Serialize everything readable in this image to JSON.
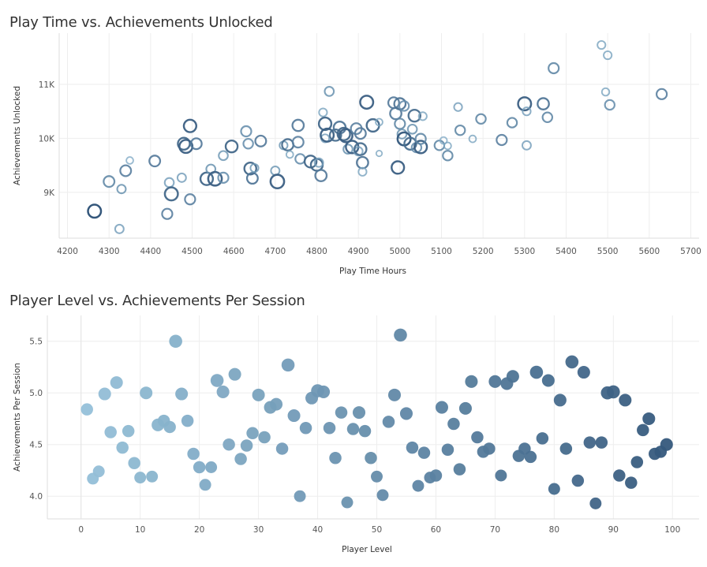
{
  "charts": [
    {
      "title": "Play Time vs. Achievements Unlocked"
    },
    {
      "title": "Player Level vs. Achievements Per Session"
    }
  ],
  "colors": {
    "light": "#9ecae1",
    "mid": "#6a9bc3",
    "dark": "#2c4f74",
    "grid": "#eeeeee"
  },
  "chart_data": [
    {
      "type": "scatter",
      "title": "Play Time vs. Achievements Unlocked",
      "xlabel": "Play Time Hours",
      "ylabel": "Achievements Unlocked",
      "xlim": [
        4180,
        5720
      ],
      "ylim": [
        8150,
        11950
      ],
      "xticks": [
        4200,
        4300,
        4400,
        4500,
        4600,
        4700,
        4800,
        4900,
        5000,
        5100,
        5200,
        5300,
        5400,
        5500,
        5600,
        5700
      ],
      "yticks": [
        {
          "v": 9000,
          "label": "9K"
        },
        {
          "v": 10000,
          "label": "10K"
        },
        {
          "v": 11000,
          "label": "11K"
        }
      ],
      "style": "hollow",
      "points": [
        {
          "x": 4265,
          "y": 8650,
          "s": 0.75,
          "c": 0.95
        },
        {
          "x": 4325,
          "y": 8320,
          "s": 0.35,
          "c": 0.35
        },
        {
          "x": 4300,
          "y": 9200,
          "s": 0.55,
          "c": 0.55
        },
        {
          "x": 4330,
          "y": 9060,
          "s": 0.35,
          "c": 0.45
        },
        {
          "x": 4340,
          "y": 9400,
          "s": 0.55,
          "c": 0.6
        },
        {
          "x": 4350,
          "y": 9590,
          "s": 0.2,
          "c": 0.25
        },
        {
          "x": 4410,
          "y": 9580,
          "s": 0.55,
          "c": 0.65
        },
        {
          "x": 4440,
          "y": 8600,
          "s": 0.5,
          "c": 0.6
        },
        {
          "x": 4445,
          "y": 9180,
          "s": 0.4,
          "c": 0.35
        },
        {
          "x": 4450,
          "y": 8970,
          "s": 0.75,
          "c": 0.8
        },
        {
          "x": 4475,
          "y": 9270,
          "s": 0.35,
          "c": 0.35
        },
        {
          "x": 4480,
          "y": 9900,
          "s": 0.65,
          "c": 0.8
        },
        {
          "x": 4485,
          "y": 9850,
          "s": 0.75,
          "c": 0.85
        },
        {
          "x": 4495,
          "y": 10230,
          "s": 0.7,
          "c": 0.85
        },
        {
          "x": 4495,
          "y": 8870,
          "s": 0.5,
          "c": 0.6
        },
        {
          "x": 4510,
          "y": 9900,
          "s": 0.55,
          "c": 0.65
        },
        {
          "x": 4535,
          "y": 9250,
          "s": 0.7,
          "c": 0.8
        },
        {
          "x": 4545,
          "y": 9430,
          "s": 0.4,
          "c": 0.45
        },
        {
          "x": 4555,
          "y": 9250,
          "s": 0.8,
          "c": 0.85
        },
        {
          "x": 4575,
          "y": 9270,
          "s": 0.5,
          "c": 0.5
        },
        {
          "x": 4575,
          "y": 9680,
          "s": 0.4,
          "c": 0.4
        },
        {
          "x": 4595,
          "y": 9850,
          "s": 0.65,
          "c": 0.8
        },
        {
          "x": 4630,
          "y": 10130,
          "s": 0.5,
          "c": 0.5
        },
        {
          "x": 4635,
          "y": 9900,
          "s": 0.45,
          "c": 0.5
        },
        {
          "x": 4640,
          "y": 9440,
          "s": 0.65,
          "c": 0.8
        },
        {
          "x": 4645,
          "y": 9260,
          "s": 0.55,
          "c": 0.7
        },
        {
          "x": 4650,
          "y": 9450,
          "s": 0.3,
          "c": 0.4
        },
        {
          "x": 4665,
          "y": 9950,
          "s": 0.55,
          "c": 0.65
        },
        {
          "x": 4700,
          "y": 9400,
          "s": 0.35,
          "c": 0.4
        },
        {
          "x": 4705,
          "y": 9200,
          "s": 0.8,
          "c": 0.85
        },
        {
          "x": 4720,
          "y": 9870,
          "s": 0.3,
          "c": 0.4
        },
        {
          "x": 4730,
          "y": 9880,
          "s": 0.6,
          "c": 0.75
        },
        {
          "x": 4735,
          "y": 9700,
          "s": 0.2,
          "c": 0.3
        },
        {
          "x": 4755,
          "y": 9930,
          "s": 0.55,
          "c": 0.6
        },
        {
          "x": 4755,
          "y": 10240,
          "s": 0.6,
          "c": 0.65
        },
        {
          "x": 4760,
          "y": 9620,
          "s": 0.45,
          "c": 0.5
        },
        {
          "x": 4785,
          "y": 9570,
          "s": 0.65,
          "c": 0.8
        },
        {
          "x": 4800,
          "y": 9510,
          "s": 0.65,
          "c": 0.8
        },
        {
          "x": 4805,
          "y": 9550,
          "s": 0.35,
          "c": 0.35
        },
        {
          "x": 4810,
          "y": 9310,
          "s": 0.6,
          "c": 0.65
        },
        {
          "x": 4815,
          "y": 10480,
          "s": 0.3,
          "c": 0.3
        },
        {
          "x": 4820,
          "y": 10270,
          "s": 0.7,
          "c": 0.8
        },
        {
          "x": 4820,
          "y": 10000,
          "s": 0.3,
          "c": 0.35
        },
        {
          "x": 4825,
          "y": 10060,
          "s": 0.75,
          "c": 0.85
        },
        {
          "x": 4830,
          "y": 10870,
          "s": 0.4,
          "c": 0.45
        },
        {
          "x": 4845,
          "y": 10060,
          "s": 0.6,
          "c": 0.75
        },
        {
          "x": 4855,
          "y": 10200,
          "s": 0.65,
          "c": 0.7
        },
        {
          "x": 4865,
          "y": 10080,
          "s": 0.7,
          "c": 0.8
        },
        {
          "x": 4870,
          "y": 10050,
          "s": 0.75,
          "c": 0.85
        },
        {
          "x": 4875,
          "y": 9800,
          "s": 0.4,
          "c": 0.45
        },
        {
          "x": 4885,
          "y": 9840,
          "s": 0.7,
          "c": 0.85
        },
        {
          "x": 4895,
          "y": 10180,
          "s": 0.55,
          "c": 0.6
        },
        {
          "x": 4900,
          "y": 9760,
          "s": 0.35,
          "c": 0.35
        },
        {
          "x": 4905,
          "y": 9800,
          "s": 0.65,
          "c": 0.75
        },
        {
          "x": 4905,
          "y": 10090,
          "s": 0.55,
          "c": 0.65
        },
        {
          "x": 4910,
          "y": 9550,
          "s": 0.6,
          "c": 0.7
        },
        {
          "x": 4910,
          "y": 9380,
          "s": 0.3,
          "c": 0.3
        },
        {
          "x": 4920,
          "y": 10670,
          "s": 0.75,
          "c": 0.85
        },
        {
          "x": 4935,
          "y": 10240,
          "s": 0.7,
          "c": 0.8
        },
        {
          "x": 4950,
          "y": 9720,
          "s": 0.1,
          "c": 0.3
        },
        {
          "x": 4950,
          "y": 10300,
          "s": 0.2,
          "c": 0.3
        },
        {
          "x": 4985,
          "y": 10660,
          "s": 0.55,
          "c": 0.65
        },
        {
          "x": 4990,
          "y": 10460,
          "s": 0.6,
          "c": 0.65
        },
        {
          "x": 4995,
          "y": 9460,
          "s": 0.7,
          "c": 0.85
        },
        {
          "x": 5000,
          "y": 10640,
          "s": 0.6,
          "c": 0.7
        },
        {
          "x": 5000,
          "y": 10270,
          "s": 0.5,
          "c": 0.55
        },
        {
          "x": 5005,
          "y": 10080,
          "s": 0.4,
          "c": 0.45
        },
        {
          "x": 5010,
          "y": 10600,
          "s": 0.45,
          "c": 0.5
        },
        {
          "x": 5010,
          "y": 9990,
          "s": 0.75,
          "c": 0.9
        },
        {
          "x": 5025,
          "y": 9900,
          "s": 0.65,
          "c": 0.75
        },
        {
          "x": 5030,
          "y": 10170,
          "s": 0.4,
          "c": 0.45
        },
        {
          "x": 5035,
          "y": 10420,
          "s": 0.65,
          "c": 0.75
        },
        {
          "x": 5040,
          "y": 9830,
          "s": 0.45,
          "c": 0.5
        },
        {
          "x": 5050,
          "y": 9840,
          "s": 0.7,
          "c": 0.85
        },
        {
          "x": 5050,
          "y": 9990,
          "s": 0.5,
          "c": 0.55
        },
        {
          "x": 5055,
          "y": 10410,
          "s": 0.3,
          "c": 0.3
        },
        {
          "x": 5095,
          "y": 9870,
          "s": 0.45,
          "c": 0.55
        },
        {
          "x": 5105,
          "y": 9960,
          "s": 0.2,
          "c": 0.25
        },
        {
          "x": 5115,
          "y": 9680,
          "s": 0.45,
          "c": 0.55
        },
        {
          "x": 5115,
          "y": 9860,
          "s": 0.2,
          "c": 0.3
        },
        {
          "x": 5140,
          "y": 10580,
          "s": 0.3,
          "c": 0.35
        },
        {
          "x": 5145,
          "y": 10150,
          "s": 0.45,
          "c": 0.55
        },
        {
          "x": 5175,
          "y": 9990,
          "s": 0.2,
          "c": 0.3
        },
        {
          "x": 5195,
          "y": 10360,
          "s": 0.45,
          "c": 0.55
        },
        {
          "x": 5245,
          "y": 9970,
          "s": 0.5,
          "c": 0.6
        },
        {
          "x": 5270,
          "y": 10290,
          "s": 0.45,
          "c": 0.55
        },
        {
          "x": 5300,
          "y": 10640,
          "s": 0.75,
          "c": 0.85
        },
        {
          "x": 5305,
          "y": 9870,
          "s": 0.35,
          "c": 0.35
        },
        {
          "x": 5305,
          "y": 10500,
          "s": 0.3,
          "c": 0.35
        },
        {
          "x": 5345,
          "y": 10640,
          "s": 0.6,
          "c": 0.7
        },
        {
          "x": 5355,
          "y": 10390,
          "s": 0.45,
          "c": 0.55
        },
        {
          "x": 5370,
          "y": 11300,
          "s": 0.5,
          "c": 0.55
        },
        {
          "x": 5485,
          "y": 11730,
          "s": 0.3,
          "c": 0.3
        },
        {
          "x": 5495,
          "y": 10860,
          "s": 0.25,
          "c": 0.3
        },
        {
          "x": 5500,
          "y": 11540,
          "s": 0.3,
          "c": 0.3
        },
        {
          "x": 5505,
          "y": 10620,
          "s": 0.45,
          "c": 0.5
        },
        {
          "x": 5630,
          "y": 10820,
          "s": 0.5,
          "c": 0.6
        }
      ]
    },
    {
      "type": "scatter",
      "title": "Player Level vs. Achievements Per Session",
      "xlabel": "Player Level",
      "ylabel": "Achievements Per Session",
      "xlim": [
        -5.7,
        104.5
      ],
      "ylim": [
        3.78,
        5.75
      ],
      "xticks": [
        0,
        10,
        20,
        30,
        40,
        50,
        60,
        70,
        80,
        90,
        100
      ],
      "yticks": [
        {
          "v": 4.0,
          "label": "4.0"
        },
        {
          "v": 4.5,
          "label": "4.5"
        },
        {
          "v": 5.0,
          "label": "5.0"
        },
        {
          "v": 5.5,
          "label": "5.5"
        }
      ],
      "style": "filled",
      "points": [
        {
          "x": 1,
          "y": 4.84,
          "s": 0.5
        },
        {
          "x": 2,
          "y": 4.17,
          "s": 0.45
        },
        {
          "x": 3,
          "y": 4.24,
          "s": 0.45
        },
        {
          "x": 4,
          "y": 4.99,
          "s": 0.55
        },
        {
          "x": 5,
          "y": 4.62,
          "s": 0.5
        },
        {
          "x": 6,
          "y": 5.1,
          "s": 0.55
        },
        {
          "x": 7,
          "y": 4.47,
          "s": 0.5
        },
        {
          "x": 8,
          "y": 4.63,
          "s": 0.5
        },
        {
          "x": 9,
          "y": 4.32,
          "s": 0.5
        },
        {
          "x": 10,
          "y": 4.18,
          "s": 0.45
        },
        {
          "x": 11,
          "y": 5.0,
          "s": 0.55
        },
        {
          "x": 12,
          "y": 4.19,
          "s": 0.45
        },
        {
          "x": 13,
          "y": 4.69,
          "s": 0.55
        },
        {
          "x": 14,
          "y": 4.73,
          "s": 0.5
        },
        {
          "x": 15,
          "y": 4.67,
          "s": 0.5
        },
        {
          "x": 16,
          "y": 5.5,
          "s": 0.6
        },
        {
          "x": 17,
          "y": 4.99,
          "s": 0.55
        },
        {
          "x": 18,
          "y": 4.73,
          "s": 0.5
        },
        {
          "x": 19,
          "y": 4.41,
          "s": 0.5
        },
        {
          "x": 20,
          "y": 4.28,
          "s": 0.5
        },
        {
          "x": 21,
          "y": 4.11,
          "s": 0.45
        },
        {
          "x": 22,
          "y": 4.28,
          "s": 0.45
        },
        {
          "x": 23,
          "y": 5.12,
          "s": 0.6
        },
        {
          "x": 24,
          "y": 5.01,
          "s": 0.55
        },
        {
          "x": 25,
          "y": 4.5,
          "s": 0.5
        },
        {
          "x": 26,
          "y": 5.18,
          "s": 0.55
        },
        {
          "x": 27,
          "y": 4.36,
          "s": 0.5
        },
        {
          "x": 28,
          "y": 4.49,
          "s": 0.5
        },
        {
          "x": 29,
          "y": 4.61,
          "s": 0.5
        },
        {
          "x": 30,
          "y": 4.98,
          "s": 0.55
        },
        {
          "x": 31,
          "y": 4.57,
          "s": 0.5
        },
        {
          "x": 32,
          "y": 4.86,
          "s": 0.55
        },
        {
          "x": 33,
          "y": 4.89,
          "s": 0.55
        },
        {
          "x": 34,
          "y": 4.46,
          "s": 0.5
        },
        {
          "x": 35,
          "y": 5.27,
          "s": 0.6
        },
        {
          "x": 36,
          "y": 4.78,
          "s": 0.55
        },
        {
          "x": 37,
          "y": 4.0,
          "s": 0.45
        },
        {
          "x": 38,
          "y": 4.66,
          "s": 0.5
        },
        {
          "x": 39,
          "y": 4.95,
          "s": 0.55
        },
        {
          "x": 40,
          "y": 5.02,
          "s": 0.6
        },
        {
          "x": 41,
          "y": 5.01,
          "s": 0.55
        },
        {
          "x": 42,
          "y": 4.66,
          "s": 0.5
        },
        {
          "x": 43,
          "y": 4.37,
          "s": 0.5
        },
        {
          "x": 44,
          "y": 4.81,
          "s": 0.5
        },
        {
          "x": 45,
          "y": 3.94,
          "s": 0.45
        },
        {
          "x": 46,
          "y": 4.65,
          "s": 0.5
        },
        {
          "x": 47,
          "y": 4.81,
          "s": 0.55
        },
        {
          "x": 48,
          "y": 4.63,
          "s": 0.5
        },
        {
          "x": 49,
          "y": 4.37,
          "s": 0.5
        },
        {
          "x": 50,
          "y": 4.19,
          "s": 0.45
        },
        {
          "x": 51,
          "y": 4.01,
          "s": 0.45
        },
        {
          "x": 52,
          "y": 4.72,
          "s": 0.5
        },
        {
          "x": 53,
          "y": 4.98,
          "s": 0.55
        },
        {
          "x": 54,
          "y": 5.56,
          "s": 0.6
        },
        {
          "x": 55,
          "y": 4.8,
          "s": 0.55
        },
        {
          "x": 56,
          "y": 4.47,
          "s": 0.5
        },
        {
          "x": 57,
          "y": 4.1,
          "s": 0.45
        },
        {
          "x": 58,
          "y": 4.42,
          "s": 0.5
        },
        {
          "x": 59,
          "y": 4.18,
          "s": 0.45
        },
        {
          "x": 60,
          "y": 4.2,
          "s": 0.5
        },
        {
          "x": 61,
          "y": 4.86,
          "s": 0.55
        },
        {
          "x": 62,
          "y": 4.45,
          "s": 0.5
        },
        {
          "x": 63,
          "y": 4.7,
          "s": 0.5
        },
        {
          "x": 64,
          "y": 4.26,
          "s": 0.5
        },
        {
          "x": 65,
          "y": 4.85,
          "s": 0.55
        },
        {
          "x": 66,
          "y": 5.11,
          "s": 0.55
        },
        {
          "x": 67,
          "y": 4.57,
          "s": 0.5
        },
        {
          "x": 68,
          "y": 4.43,
          "s": 0.5
        },
        {
          "x": 69,
          "y": 4.46,
          "s": 0.5
        },
        {
          "x": 70,
          "y": 5.11,
          "s": 0.55
        },
        {
          "x": 71,
          "y": 4.2,
          "s": 0.45
        },
        {
          "x": 72,
          "y": 5.09,
          "s": 0.55
        },
        {
          "x": 73,
          "y": 5.16,
          "s": 0.55
        },
        {
          "x": 74,
          "y": 4.39,
          "s": 0.5
        },
        {
          "x": 75,
          "y": 4.46,
          "s": 0.5
        },
        {
          "x": 76,
          "y": 4.38,
          "s": 0.5
        },
        {
          "x": 77,
          "y": 5.2,
          "s": 0.6
        },
        {
          "x": 78,
          "y": 4.56,
          "s": 0.5
        },
        {
          "x": 79,
          "y": 5.12,
          "s": 0.55
        },
        {
          "x": 80,
          "y": 4.07,
          "s": 0.45
        },
        {
          "x": 81,
          "y": 4.93,
          "s": 0.55
        },
        {
          "x": 82,
          "y": 4.46,
          "s": 0.5
        },
        {
          "x": 83,
          "y": 5.3,
          "s": 0.6
        },
        {
          "x": 84,
          "y": 4.15,
          "s": 0.5
        },
        {
          "x": 85,
          "y": 5.2,
          "s": 0.55
        },
        {
          "x": 86,
          "y": 4.52,
          "s": 0.5
        },
        {
          "x": 87,
          "y": 3.93,
          "s": 0.45
        },
        {
          "x": 88,
          "y": 4.52,
          "s": 0.5
        },
        {
          "x": 89,
          "y": 5.0,
          "s": 0.6
        },
        {
          "x": 90,
          "y": 5.01,
          "s": 0.6
        },
        {
          "x": 91,
          "y": 4.2,
          "s": 0.5
        },
        {
          "x": 92,
          "y": 4.93,
          "s": 0.55
        },
        {
          "x": 93,
          "y": 4.13,
          "s": 0.5
        },
        {
          "x": 94,
          "y": 4.33,
          "s": 0.5
        },
        {
          "x": 95,
          "y": 4.64,
          "s": 0.5
        },
        {
          "x": 96,
          "y": 4.75,
          "s": 0.55
        },
        {
          "x": 97,
          "y": 4.41,
          "s": 0.5
        },
        {
          "x": 98,
          "y": 4.43,
          "s": 0.5
        },
        {
          "x": 99,
          "y": 4.5,
          "s": 0.55
        }
      ]
    }
  ]
}
